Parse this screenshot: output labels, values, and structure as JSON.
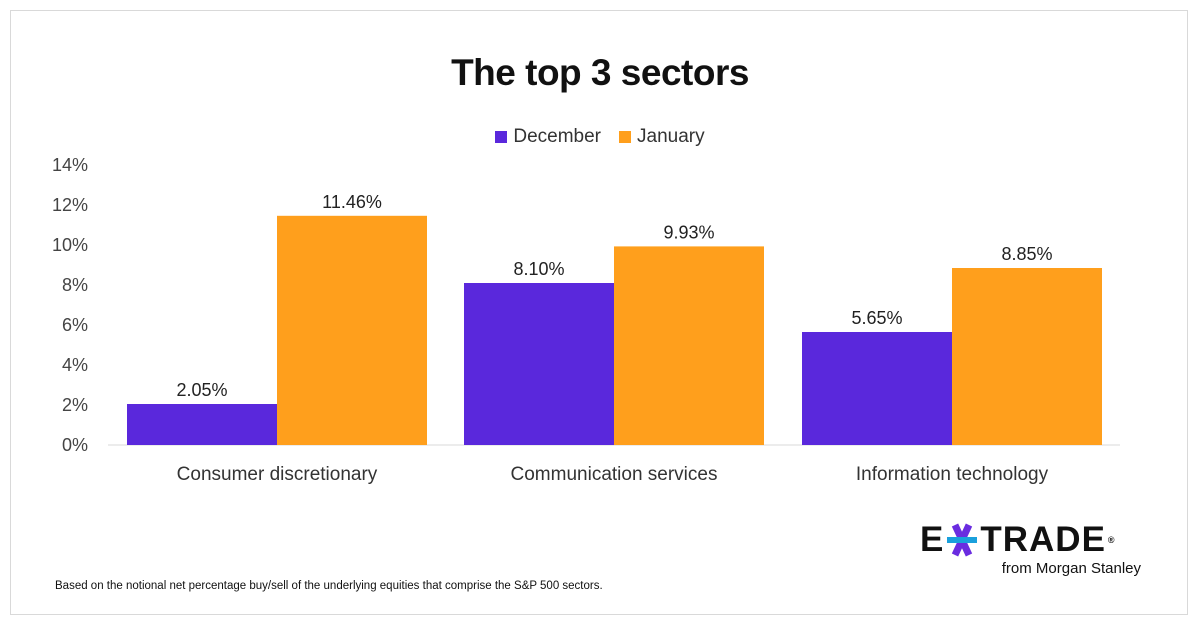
{
  "chart_data": {
    "type": "bar",
    "title": "The top 3 sectors",
    "categories": [
      "Consumer discretionary",
      "Communication services",
      "Information technology"
    ],
    "series": [
      {
        "name": "December",
        "color": "#5a28dc",
        "values": [
          2.05,
          8.1,
          5.65
        ],
        "labels": [
          "2.05%",
          "8.10%",
          "5.65%"
        ]
      },
      {
        "name": "January",
        "color": "#ff9f1c",
        "values": [
          11.46,
          9.93,
          8.85
        ],
        "labels": [
          "11.46%",
          "9.93%",
          "8.85%"
        ]
      }
    ],
    "ylim": [
      0,
      14
    ],
    "yticks": [
      0,
      2,
      4,
      6,
      8,
      10,
      12,
      14
    ],
    "ytick_labels": [
      "0%",
      "2%",
      "4%",
      "6%",
      "8%",
      "10%",
      "12%",
      "14%"
    ],
    "xlabel": "",
    "ylabel": "",
    "legend_position": "top-center",
    "grid": false
  },
  "footnote": "Based on the notional net percentage buy/sell of the underlying equities that comprise the S&P 500 sectors.",
  "logo": {
    "brand": "E*TRADE",
    "sub": "from Morgan Stanley"
  }
}
